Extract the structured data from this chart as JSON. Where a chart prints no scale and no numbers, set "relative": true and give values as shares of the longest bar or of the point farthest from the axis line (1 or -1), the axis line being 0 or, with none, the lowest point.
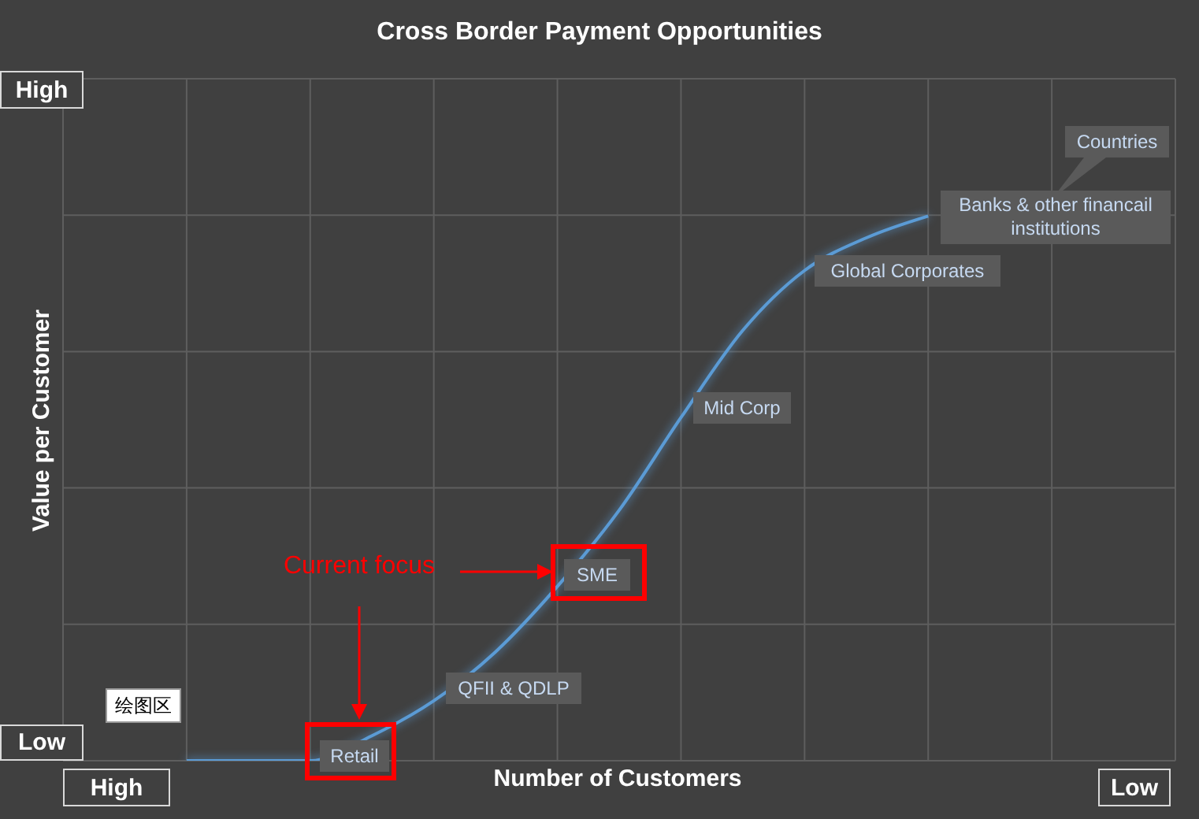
{
  "chart_data": {
    "type": "line",
    "title": "Cross Border Payment Opportunities",
    "xlabel": "Number of Customers",
    "ylabel": "Value per Customer",
    "relative": true,
    "grid": true,
    "categories": [
      null,
      null,
      null,
      null,
      null,
      null,
      null,
      null,
      null,
      null,
      null,
      null,
      null,
      null,
      null,
      null,
      null,
      null,
      null
    ],
    "series": [
      {
        "color": "#5b9bd5",
        "values": [
          null,
          null,
          0,
          0,
          0,
          0.046,
          0.11,
          0.2,
          0.32,
          0.46,
          0.63,
          0.79,
          0.9,
          0.96,
          1,
          null,
          null,
          null,
          null
        ]
      }
    ],
    "annotations": [
      "High",
      "Low",
      "High",
      "Low",
      "Current focus",
      "Countries",
      "绘图区",
      "Retail",
      "QFII & QDLP",
      "SME",
      "Mid Corp",
      "Global Corporates",
      "Banks & other financail institutions"
    ]
  }
}
